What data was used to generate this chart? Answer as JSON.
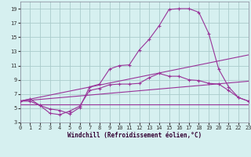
{
  "background_color": "#d6f0f0",
  "grid_color": "#aacccc",
  "line_color": "#993399",
  "xlim": [
    0,
    23
  ],
  "ylim": [
    3,
    20
  ],
  "xticks": [
    0,
    1,
    2,
    3,
    4,
    5,
    6,
    7,
    8,
    9,
    10,
    11,
    12,
    13,
    14,
    15,
    16,
    17,
    18,
    19,
    20,
    21,
    22,
    23
  ],
  "yticks": [
    3,
    5,
    7,
    9,
    11,
    13,
    15,
    17,
    19
  ],
  "xlabel": "Windchill (Refroidissement éolien,°C)",
  "line1_x": [
    0,
    1,
    2,
    3,
    4,
    5,
    6,
    7,
    8,
    9,
    10,
    11,
    12,
    13,
    14,
    15,
    16,
    17,
    18,
    19,
    20,
    21,
    22,
    23
  ],
  "line1_y": [
    6.0,
    6.3,
    5.4,
    4.9,
    4.7,
    4.2,
    5.1,
    8.0,
    8.4,
    10.5,
    11.0,
    11.1,
    13.2,
    14.7,
    16.6,
    18.9,
    19.0,
    19.0,
    18.5,
    15.5,
    10.5,
    8.0,
    6.5,
    6.0
  ],
  "line2_x": [
    0,
    1,
    2,
    3,
    4,
    5,
    6,
    7,
    8,
    9,
    10,
    11,
    12,
    13,
    14,
    15,
    16,
    17,
    18,
    19,
    20,
    21,
    22,
    23
  ],
  "line2_y": [
    6.0,
    6.0,
    5.4,
    4.3,
    4.1,
    4.6,
    5.3,
    7.5,
    7.8,
    8.3,
    8.4,
    8.4,
    8.5,
    9.3,
    9.9,
    9.5,
    9.5,
    9.0,
    8.9,
    8.5,
    8.4,
    7.5,
    6.5,
    6.0
  ],
  "line3_x": [
    0,
    23
  ],
  "line3_y": [
    6.0,
    12.5
  ],
  "line4_x": [
    0,
    23
  ],
  "line4_y": [
    6.0,
    8.8
  ],
  "line5_x": [
    0,
    23
  ],
  "line5_y": [
    5.5,
    5.5
  ]
}
